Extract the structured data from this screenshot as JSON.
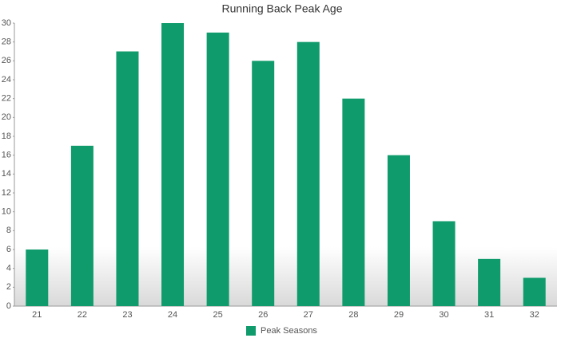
{
  "chart_data": {
    "type": "bar",
    "title": "Running Back Peak Age",
    "categories": [
      "21",
      "22",
      "23",
      "24",
      "25",
      "26",
      "27",
      "28",
      "29",
      "30",
      "31",
      "32"
    ],
    "series": [
      {
        "name": "Peak Seasons",
        "color": "#0f9b6b",
        "values": [
          6,
          17,
          27,
          30,
          29,
          26,
          28,
          22,
          16,
          9,
          5,
          3
        ]
      }
    ],
    "ylim": [
      0,
      30
    ],
    "yticks": [
      0,
      2,
      4,
      6,
      8,
      10,
      12,
      14,
      16,
      18,
      20,
      22,
      24,
      26,
      28,
      30
    ],
    "legend": "bottom"
  }
}
